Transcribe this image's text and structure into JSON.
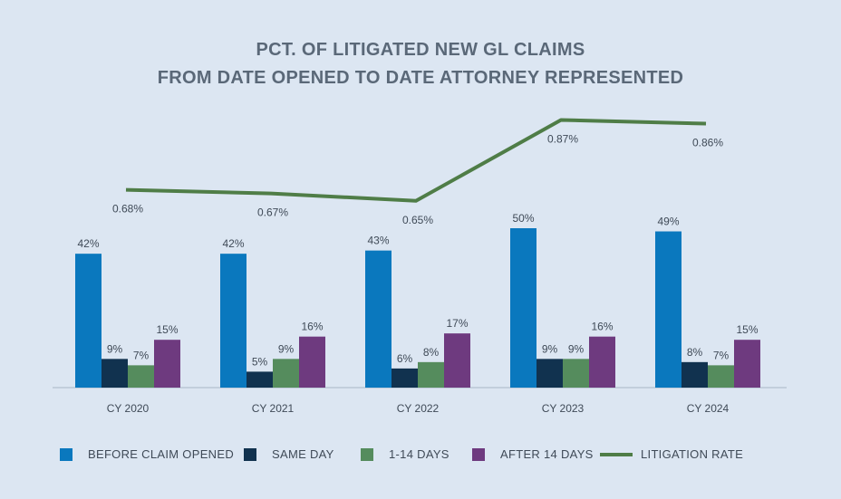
{
  "title_lines": [
    "PCT. OF LITIGATED NEW GL CLAIMS",
    "FROM DATE OPENED TO DATE ATTORNEY REPRESENTED"
  ],
  "colors": {
    "background": "#dce6f2",
    "before": "#0a78be",
    "same_day": "#11324f",
    "one_14": "#558c5d",
    "after_14": "#6e3a7f",
    "litigation": "#4f7d47",
    "text": "#3f4a57",
    "title": "#5a6878",
    "axis": "#a7b6c7"
  },
  "chart_data": {
    "type": "bar",
    "title": "PCT. OF LITIGATED NEW GL CLAIMS FROM DATE OPENED TO DATE ATTORNEY REPRESENTED",
    "categories": [
      "CY 2020",
      "CY 2021",
      "CY 2022",
      "CY 2023",
      "CY 2024"
    ],
    "series": [
      {
        "name": "BEFORE CLAIM OPENED",
        "color_key": "before",
        "values": [
          42,
          42,
          43,
          50,
          49
        ],
        "labels": [
          "42%",
          "42%",
          "43%",
          "50%",
          "49%"
        ]
      },
      {
        "name": "SAME DAY",
        "color_key": "same_day",
        "values": [
          9,
          5,
          6,
          9,
          8
        ],
        "labels": [
          "9%",
          "5%",
          "6%",
          "9%",
          "8%"
        ]
      },
      {
        "name": "1-14 DAYS",
        "color_key": "one_14",
        "values": [
          7,
          9,
          8,
          9,
          7
        ],
        "labels": [
          "7%",
          "9%",
          "8%",
          "9%",
          "7%"
        ]
      }
    ],
    "series_extra": {
      "name": "AFTER 14 DAYS",
      "color_key": "after_14",
      "values": [
        15,
        16,
        17,
        16,
        15
      ],
      "labels": [
        "15%",
        "16%",
        "17%",
        "16%",
        "15%"
      ]
    },
    "line_series": {
      "name": "LITIGATION RATE",
      "color_key": "litigation",
      "type": "line",
      "values": [
        0.68,
        0.67,
        0.65,
        0.87,
        0.86
      ],
      "labels": [
        "0.68%",
        "0.67%",
        "0.65%",
        "0.87%",
        "0.86%"
      ]
    },
    "ylim_bars": [
      0,
      57
    ],
    "ylim_line": [
      0.1,
      0.95
    ],
    "grid": false,
    "legend_position": "bottom"
  }
}
